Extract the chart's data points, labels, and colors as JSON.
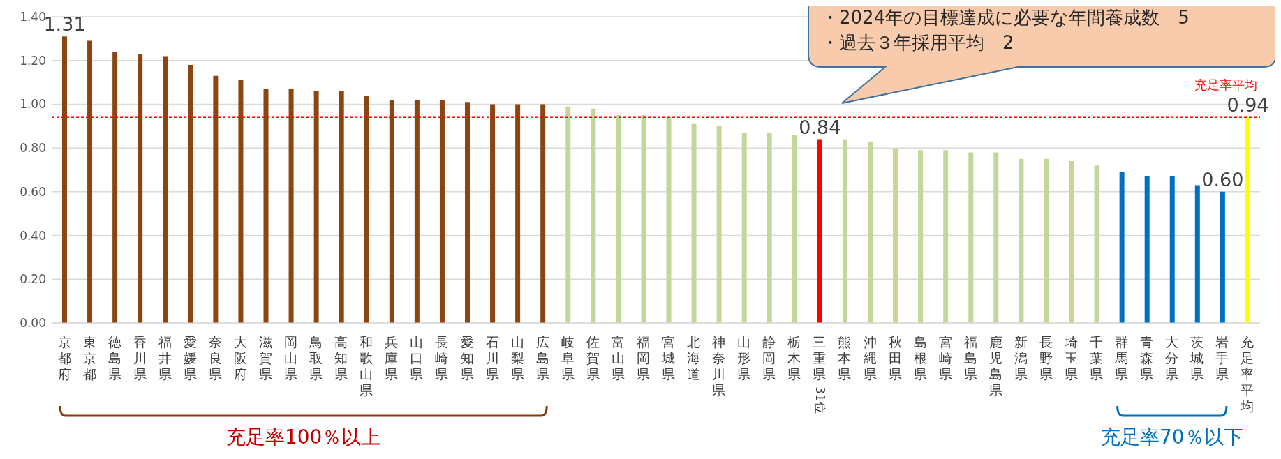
{
  "chart_data": {
    "type": "bar",
    "categories": [
      "京都府",
      "東京都",
      "徳島県",
      "香川県",
      "福井県",
      "愛媛県",
      "奈良県",
      "大阪府",
      "滋賀県",
      "岡山県",
      "鳥取県",
      "高知県",
      "和歌山県",
      "兵庫県",
      "山口県",
      "長崎県",
      "愛知県",
      "石川県",
      "山梨県",
      "広島県",
      "岐阜県",
      "佐賀県",
      "富山県",
      "福岡県",
      "宮城県",
      "北海道",
      "神奈川県",
      "山形県",
      "静岡県",
      "栃木県",
      "三重県",
      "熊本県",
      "沖縄県",
      "秋田県",
      "島根県",
      "宮崎県",
      "福島県",
      "鹿児島県",
      "新潟県",
      "長野県",
      "埼玉県",
      "千葉県",
      "群馬県",
      "青森県",
      "大分県",
      "茨城県",
      "岩手県",
      "充足率平均"
    ],
    "values": [
      1.31,
      1.29,
      1.24,
      1.23,
      1.22,
      1.18,
      1.13,
      1.11,
      1.07,
      1.07,
      1.06,
      1.06,
      1.04,
      1.02,
      1.02,
      1.02,
      1.01,
      1.0,
      1.0,
      1.0,
      0.99,
      0.98,
      0.95,
      0.95,
      0.94,
      0.91,
      0.9,
      0.87,
      0.87,
      0.86,
      0.84,
      0.84,
      0.83,
      0.8,
      0.79,
      0.79,
      0.78,
      0.78,
      0.75,
      0.75,
      0.74,
      0.72,
      0.69,
      0.67,
      0.67,
      0.63,
      0.6,
      0.94
    ],
    "colors": [
      "#8b4513",
      "#8b4513",
      "#8b4513",
      "#8b4513",
      "#8b4513",
      "#8b4513",
      "#8b4513",
      "#8b4513",
      "#8b4513",
      "#8b4513",
      "#8b4513",
      "#8b4513",
      "#8b4513",
      "#8b4513",
      "#8b4513",
      "#8b4513",
      "#8b4513",
      "#8b4513",
      "#8b4513",
      "#8b4513",
      "#c4d79b",
      "#c4d79b",
      "#c4d79b",
      "#c4d79b",
      "#c4d79b",
      "#c4d79b",
      "#c4d79b",
      "#c4d79b",
      "#c4d79b",
      "#c4d79b",
      "#ff0000",
      "#c4d79b",
      "#c4d79b",
      "#c4d79b",
      "#c4d79b",
      "#c4d79b",
      "#c4d79b",
      "#c4d79b",
      "#c4d79b",
      "#c4d79b",
      "#c4d79b",
      "#c4d79b",
      "#0070c0",
      "#0070c0",
      "#0070c0",
      "#0070c0",
      "#0070c0",
      "#ffff00"
    ],
    "value_labels": [
      "1.31",
      null,
      null,
      null,
      null,
      null,
      null,
      null,
      null,
      null,
      null,
      null,
      null,
      null,
      null,
      null,
      null,
      null,
      null,
      null,
      null,
      null,
      null,
      null,
      null,
      null,
      null,
      null,
      null,
      null,
      "0.84",
      null,
      null,
      null,
      null,
      null,
      null,
      null,
      null,
      null,
      null,
      null,
      null,
      null,
      null,
      null,
      "0.60",
      "0.94"
    ],
    "ylim": [
      0,
      1.4
    ],
    "yticks": [
      {
        "value": 0,
        "label": "0.00"
      },
      {
        "value": 0.2,
        "label": "0.20"
      },
      {
        "value": 0.4,
        "label": "0.40"
      },
      {
        "value": 0.6,
        "label": "0.60"
      },
      {
        "value": 0.8,
        "label": "0.80"
      },
      {
        "value": 1,
        "label": "1.00"
      },
      {
        "value": 1.2,
        "label": "1.20"
      },
      {
        "value": 1.4,
        "label": "1.40"
      }
    ],
    "grid": "y",
    "ref_lines": [
      {
        "axis": "y",
        "value": 0.94,
        "label": "充足率平均",
        "color": "#ff0000",
        "line_style": "dashed"
      }
    ],
    "annotations": [
      "・2024年の目標達成に必要な年間養成数　5",
      "・過去３年採用平均　2",
      "31位",
      "充足率100％以上",
      "充足率70％以下"
    ]
  }
}
